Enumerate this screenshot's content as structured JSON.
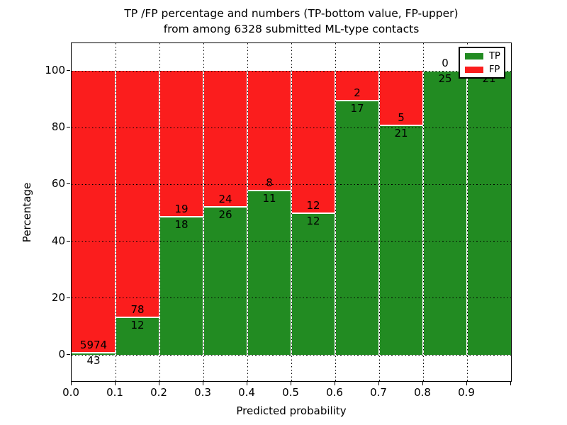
{
  "title": {
    "line1": "TP /FP percentage and numbers (TP-bottom value, FP-upper)",
    "line2": "from among 6328 submitted ML-type contacts"
  },
  "axes": {
    "xlabel": "Predicted probability",
    "ylabel": "Percentage",
    "xtick_labels": [
      "0.0",
      "0.1",
      "0.2",
      "0.3",
      "0.4",
      "0.5",
      "0.6",
      "0.7",
      "0.8",
      "0.9"
    ],
    "ytick_values": [
      0,
      20,
      40,
      60,
      80,
      100
    ],
    "ytick_labels": [
      "0",
      "20",
      "40",
      "60",
      "80",
      "100"
    ],
    "xlim": [
      0.0,
      1.0
    ],
    "ylim": [
      -10,
      110
    ],
    "grid": "dotted"
  },
  "legend": {
    "position": "upper-right",
    "entries": [
      {
        "label": "TP",
        "color": "#228b22"
      },
      {
        "label": "FP",
        "color": "#fb1d1d"
      }
    ]
  },
  "colors": {
    "tp": "#228b22",
    "fp": "#fb1d1d",
    "bar_edge": "#ffffff",
    "background": "#ffffff",
    "text": "#000000"
  },
  "chart_data": {
    "type": "bar",
    "stacked": true,
    "normalized_to_percent": true,
    "title": "TP /FP percentage and numbers (TP-bottom value, FP-upper) from among 6328 submitted ML-type contacts",
    "xlabel": "Predicted probability",
    "ylabel": "Percentage",
    "bin_edges": [
      0.0,
      0.1,
      0.2,
      0.3,
      0.4,
      0.5,
      0.6,
      0.7,
      0.8,
      0.9,
      1.0
    ],
    "categories": [
      "0.0-0.1",
      "0.1-0.2",
      "0.2-0.3",
      "0.3-0.4",
      "0.4-0.5",
      "0.5-0.6",
      "0.6-0.7",
      "0.7-0.8",
      "0.8-0.9",
      "0.9-1.0"
    ],
    "series": [
      {
        "name": "TP",
        "color": "#228b22",
        "counts": [
          43,
          12,
          18,
          26,
          11,
          12,
          17,
          21,
          25,
          21
        ],
        "percent": [
          0.71,
          13.33,
          48.65,
          52.0,
          57.89,
          50.0,
          89.47,
          80.77,
          100.0,
          100.0
        ]
      },
      {
        "name": "FP",
        "color": "#fb1d1d",
        "counts": [
          5974,
          78,
          19,
          24,
          8,
          12,
          2,
          5,
          0,
          0
        ],
        "percent": [
          99.29,
          86.67,
          51.35,
          48.0,
          42.11,
          50.0,
          10.53,
          19.23,
          0.0,
          0.0
        ]
      }
    ],
    "total_contacts": 6328,
    "ylim": [
      -10,
      110
    ],
    "legend_position": "upper right",
    "note": "Each bin normalized to 100%; TP count printed just below the TP/FP boundary, FP count just above it; FP label of last bin hidden behind legend."
  }
}
